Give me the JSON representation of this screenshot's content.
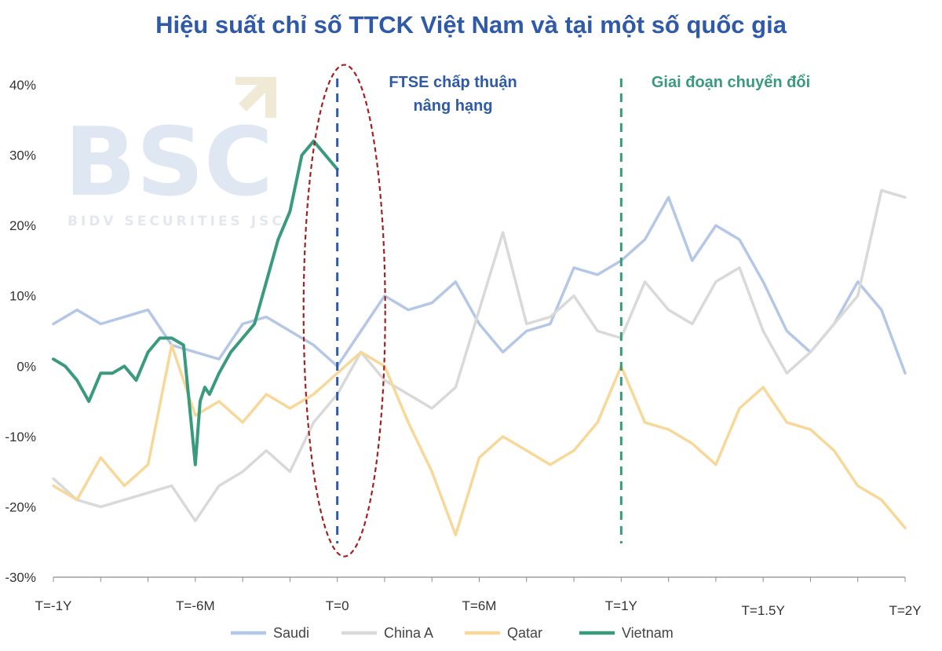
{
  "chart_data": {
    "type": "line",
    "title": "Hiệu suất chỉ số TTCK Việt Nam và tại một số quốc gia",
    "xlabel": "",
    "ylabel": "",
    "x_domain": [
      -12,
      24
    ],
    "ylim": [
      -30,
      40
    ],
    "y_ticks": [
      {
        "value": 40,
        "label": "40%"
      },
      {
        "value": 30,
        "label": "30%"
      },
      {
        "value": 20,
        "label": "20%"
      },
      {
        "value": 10,
        "label": "10%"
      },
      {
        "value": 0,
        "label": "0%"
      },
      {
        "value": -10,
        "label": "-10%"
      },
      {
        "value": -20,
        "label": "-20%"
      },
      {
        "value": -30,
        "label": "-30%"
      }
    ],
    "x_ticks": [
      {
        "value": -12,
        "label": "T=-1Y"
      },
      {
        "value": -6,
        "label": "T=-6M"
      },
      {
        "value": 0,
        "label": "T=0"
      },
      {
        "value": 6,
        "label": "T=6M"
      },
      {
        "value": 12,
        "label": "T=1Y"
      },
      {
        "value": 18,
        "label": "T=1.5Y"
      },
      {
        "value": 24,
        "label": "T=2Y"
      }
    ],
    "x_minor_ticks": [
      -10,
      -8,
      -4,
      -2,
      2,
      4,
      8,
      10,
      14,
      16,
      20,
      22
    ],
    "series": [
      {
        "name": "Saudi",
        "color": "#b4c7e7",
        "x": [
          -12,
          -11,
          -10,
          -9,
          -8,
          -7,
          -6,
          -5,
          -4,
          -3,
          -2,
          -1,
          0,
          1,
          2,
          3,
          4,
          5,
          6,
          7,
          8,
          9,
          10,
          11,
          12,
          13,
          14,
          15,
          16,
          17,
          18,
          19,
          20,
          21,
          22,
          23,
          24
        ],
        "y": [
          6,
          8,
          6,
          7,
          8,
          3,
          2,
          1,
          6,
          7,
          5,
          3,
          0,
          5,
          10,
          8,
          9,
          12,
          6,
          2,
          5,
          6,
          14,
          13,
          15,
          18,
          24,
          15,
          20,
          18,
          12,
          5,
          2,
          6,
          12,
          8,
          -1
        ]
      },
      {
        "name": "China A",
        "color": "#d9d9d9",
        "x": [
          -12,
          -11,
          -10,
          -9,
          -8,
          -7,
          -6,
          -5,
          -4,
          -3,
          -2,
          -1,
          0,
          1,
          2,
          3,
          4,
          5,
          6,
          7,
          8,
          9,
          10,
          11,
          12,
          13,
          14,
          15,
          16,
          17,
          18,
          19,
          20,
          21,
          22,
          23,
          24
        ],
        "y": [
          -16,
          -19,
          -20,
          -19,
          -18,
          -17,
          -22,
          -17,
          -15,
          -12,
          -15,
          -8,
          -4,
          2,
          -2,
          -4,
          -6,
          -3,
          8,
          19,
          6,
          7,
          10,
          5,
          4,
          12,
          8,
          6,
          12,
          14,
          5,
          -1,
          2,
          6,
          10,
          25,
          24
        ]
      },
      {
        "name": "Qatar",
        "color": "#f8d898",
        "x": [
          -12,
          -11,
          -10,
          -9,
          -8,
          -7,
          -6,
          -5,
          -4,
          -3,
          -2,
          -1,
          0,
          1,
          2,
          3,
          4,
          5,
          6,
          7,
          8,
          9,
          10,
          11,
          12,
          13,
          14,
          15,
          16,
          17,
          18,
          19,
          20,
          21,
          22,
          23,
          24
        ],
        "y": [
          -17,
          -19,
          -13,
          -17,
          -14,
          3,
          -7,
          -5,
          -8,
          -4,
          -6,
          -4,
          -1,
          2,
          0,
          -8,
          -15,
          -24,
          -13,
          -10,
          -12,
          -14,
          -12,
          -8,
          0,
          -8,
          -9,
          -11,
          -14,
          -6,
          -3,
          -8,
          -9,
          -12,
          -17,
          -19,
          -23
        ]
      },
      {
        "name": "Vietnam",
        "color": "#3a9a7e",
        "x": [
          -12,
          -11.5,
          -11,
          -10.5,
          -10,
          -9.5,
          -9,
          -8.5,
          -8,
          -7.5,
          -7,
          -6.5,
          -6,
          -5.8,
          -5.6,
          -5.4,
          -5,
          -4.5,
          -4,
          -3.5,
          -3,
          -2.5,
          -2,
          -1.5,
          -1,
          -0.5,
          0
        ],
        "y": [
          1,
          0,
          -2,
          -5,
          -1,
          -1,
          0,
          -2,
          2,
          4,
          4,
          3,
          -14,
          -5,
          -3,
          -4,
          -1,
          2,
          4,
          6,
          12,
          18,
          22,
          30,
          32,
          30,
          28
        ]
      }
    ],
    "annotations": [
      {
        "text_lines": [
          "FTSE chấp thuận",
          "nâng hạng"
        ],
        "x": 0,
        "color": "#2f5aa7",
        "line_style": "dashed"
      },
      {
        "text_lines": [
          "Giai đoạn chuyển đổi"
        ],
        "x": 12,
        "color": "#3a9a7e",
        "line_style": "dashed"
      }
    ],
    "highlight_ellipse": {
      "x_center": 0.3,
      "y_center": 7,
      "color": "#a32020"
    },
    "legend_position": "bottom",
    "grid": false
  },
  "watermark": {
    "big": "BSC",
    "small": "BIDV SECURITIES JSC"
  }
}
